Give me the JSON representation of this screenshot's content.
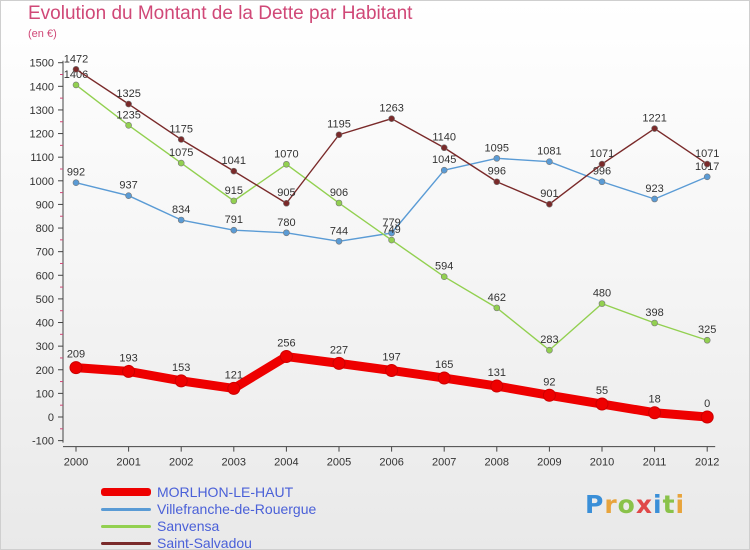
{
  "title": "Evolution du Montant de la Dette par Habitant",
  "unit_label": "(en €)",
  "logo": {
    "letters": [
      "P",
      "r",
      "o",
      "x",
      "i",
      "t",
      "i"
    ],
    "colors": [
      "#3a8fd8",
      "#e8a43c",
      "#8ac24a",
      "#e04848",
      "#3a8fd8",
      "#8ac24a",
      "#e8a43c"
    ]
  },
  "chart_data": {
    "type": "line",
    "x": [
      "2000",
      "2001",
      "2002",
      "2003",
      "2004",
      "2005",
      "2006",
      "2007",
      "2008",
      "2009",
      "2010",
      "2011",
      "2012"
    ],
    "ylim": [
      -100,
      1500
    ],
    "yticks": [
      "-100",
      "0",
      "100",
      "200",
      "300",
      "400",
      "500",
      "600",
      "700",
      "800",
      "900",
      "1000",
      "1100",
      "1200",
      "1300",
      "1400",
      "1500"
    ],
    "grid": false,
    "legend_position": "bottom-left",
    "series": [
      {
        "name": "MORLHON-LE-HAUT",
        "color": "#ee0000",
        "values": [
          209,
          193,
          153,
          121,
          256,
          227,
          197,
          165,
          131,
          92,
          55,
          18,
          0
        ],
        "labels": [
          "209",
          "193",
          "153",
          "121",
          "256",
          "227",
          "197",
          "165",
          "131",
          "92",
          "55",
          "18",
          "0"
        ]
      },
      {
        "name": "Villefranche-de-Rouergue",
        "color": "#5a9bd5",
        "values": [
          992,
          937,
          834,
          791,
          780,
          744,
          779,
          1045,
          1095,
          1081,
          996,
          923,
          1017
        ],
        "labels": [
          "992",
          "937",
          "834",
          "791",
          "780",
          "744",
          "779",
          "1045",
          "1095",
          "1081",
          "996",
          "923",
          "1017"
        ]
      },
      {
        "name": "Sanvensa",
        "color": "#92d050",
        "values": [
          1406,
          1235,
          1075,
          915,
          1070,
          906,
          749,
          594,
          462,
          283,
          480,
          398,
          325
        ],
        "labels": [
          "1406",
          "1235",
          "1075",
          "915",
          "1070",
          "906",
          "749",
          "594",
          "462",
          "283",
          "480",
          "398",
          "325"
        ]
      },
      {
        "name": "Saint-Salvadou",
        "color": "#7a2a2a",
        "values": [
          1472,
          1325,
          1175,
          1041,
          905,
          1195,
          1263,
          1140,
          996,
          901,
          1071,
          1221,
          1071
        ],
        "labels": [
          "1472",
          "1325",
          "1175",
          "1041",
          "905",
          "1195",
          "1263",
          "1140",
          "996",
          "901",
          "1071",
          "1221",
          "1071"
        ]
      }
    ]
  }
}
